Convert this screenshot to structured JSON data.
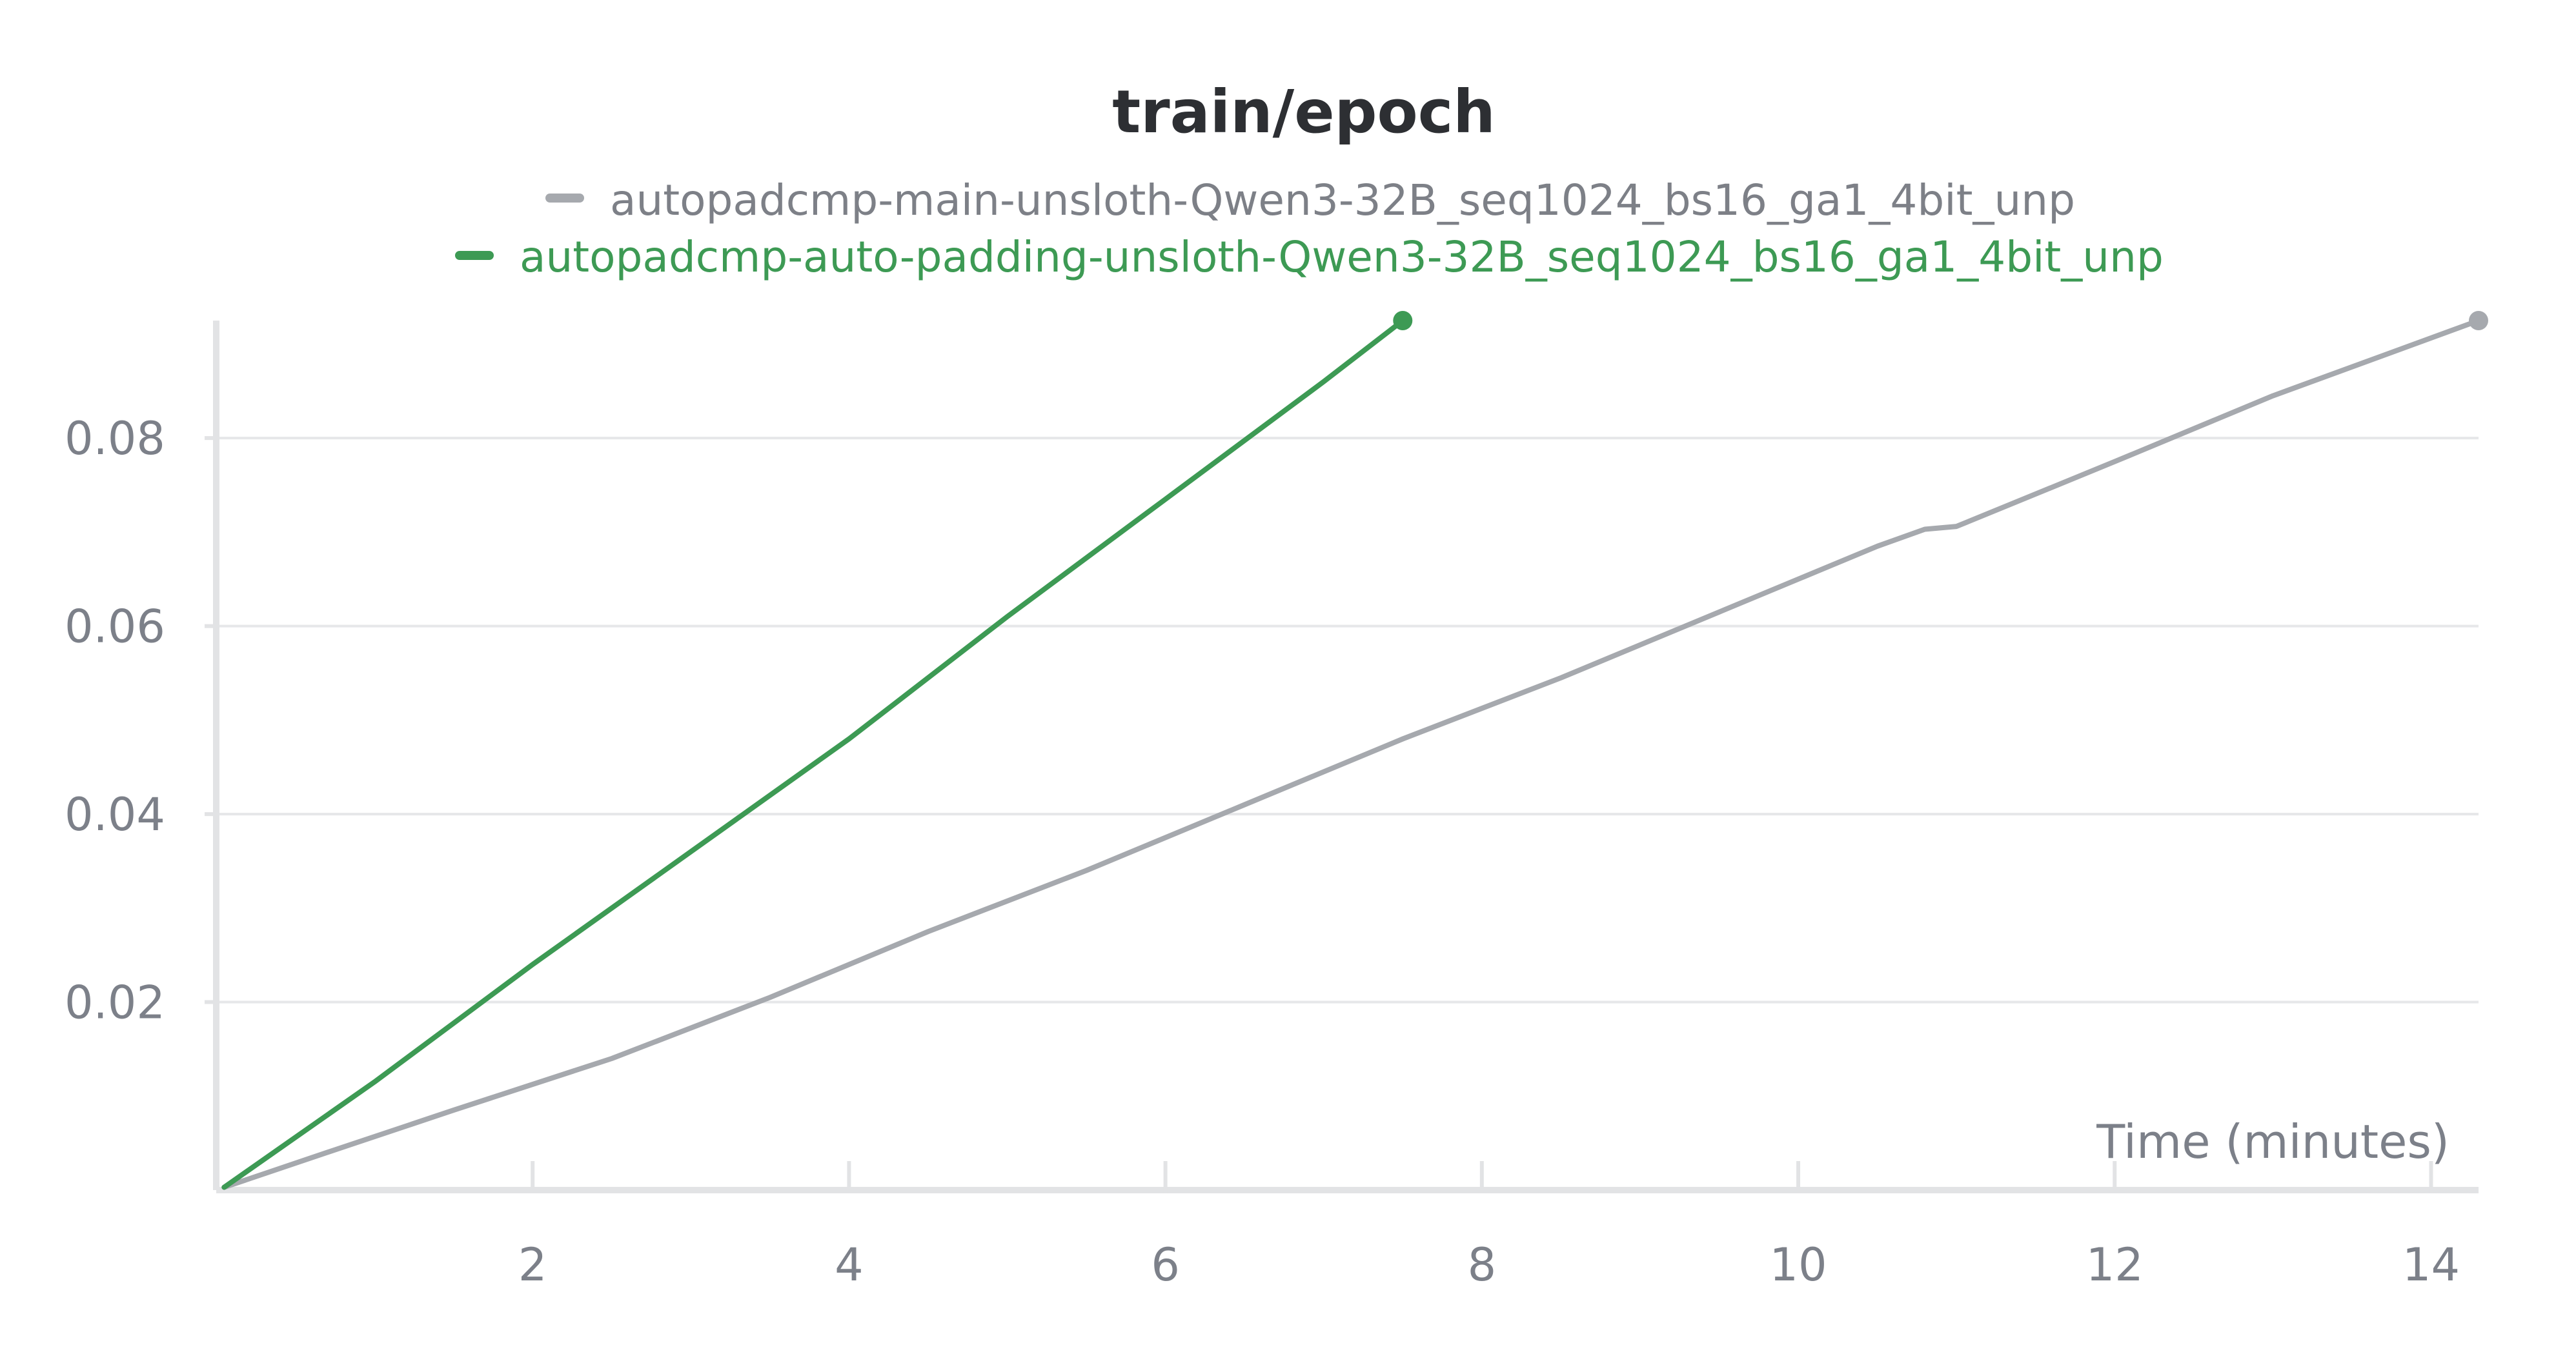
{
  "chart_data": {
    "type": "line",
    "title": "train/epoch",
    "xlabel": "Time (minutes)",
    "ylabel": "",
    "xlim": [
      0,
      14.3
    ],
    "ylim": [
      0,
      0.0925
    ],
    "x_ticks": [
      2,
      4,
      6,
      8,
      10,
      12,
      14
    ],
    "y_ticks": [
      0.02,
      0.04,
      0.06,
      0.08
    ],
    "x_tick_labels": [
      "2",
      "4",
      "6",
      "8",
      "10",
      "12",
      "14"
    ],
    "y_tick_labels": [
      "0.02",
      "0.04",
      "0.06",
      "0.08"
    ],
    "grid": true,
    "legend_position": "top",
    "series": [
      {
        "name": "autopadcmp-main-unsloth-Qwen3-32B_seq1024_bs16_ga1_4bit_unp",
        "color": "#a6a9ae",
        "x": [
          0.05,
          0.7,
          1.5,
          2.5,
          3.5,
          4.5,
          5.5,
          6.5,
          7.5,
          8.5,
          9.5,
          10.5,
          10.8,
          11.0,
          12.0,
          13.0,
          14.3
        ],
        "y": [
          0.0003,
          0.004,
          0.0085,
          0.014,
          0.0205,
          0.0275,
          0.034,
          0.041,
          0.048,
          0.0545,
          0.0615,
          0.0685,
          0.0703,
          0.0706,
          0.0775,
          0.0845,
          0.0925
        ]
      },
      {
        "name": "autopadcmp-auto-padding-unsloth-Qwen3-32B_seq1024_bs16_ga1_4bit_unp",
        "color": "#3d9a54",
        "x": [
          0.05,
          1.0,
          2.0,
          3.0,
          4.0,
          5.0,
          6.0,
          7.0,
          7.5
        ],
        "y": [
          0.0003,
          0.0115,
          0.024,
          0.036,
          0.048,
          0.061,
          0.0735,
          0.086,
          0.0925
        ]
      }
    ]
  }
}
